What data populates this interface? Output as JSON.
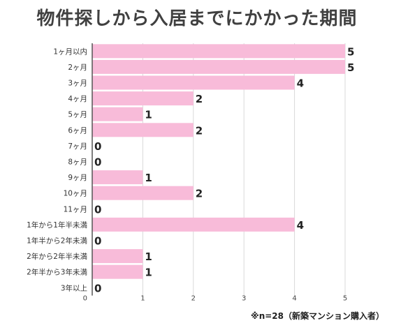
{
  "chart_data": {
    "type": "bar",
    "orientation": "horizontal",
    "title": "物件探しから入居までにかかった期間",
    "categories": [
      "1ヶ月以内",
      "2ヶ月",
      "3ヶ月",
      "4ヶ月",
      "5ヶ月",
      "6ヶ月",
      "7ヶ月",
      "8ヶ月",
      "9ヶ月",
      "10ヶ月",
      "11ヶ月",
      "1年から1年半未満",
      "1年半から2年未満",
      "2年から2年半未満",
      "2年半から3年未満",
      "3年以上"
    ],
    "values": [
      5,
      5,
      4,
      2,
      1,
      2,
      0,
      0,
      1,
      2,
      0,
      4,
      0,
      1,
      1,
      0
    ],
    "xlim": [
      0,
      5
    ],
    "xticks": [
      "0",
      "1",
      "2",
      "3",
      "4",
      "5"
    ],
    "grid": true,
    "bar_color": "#f8bbd9",
    "note": "※n=28（新築マンション購入者）"
  }
}
